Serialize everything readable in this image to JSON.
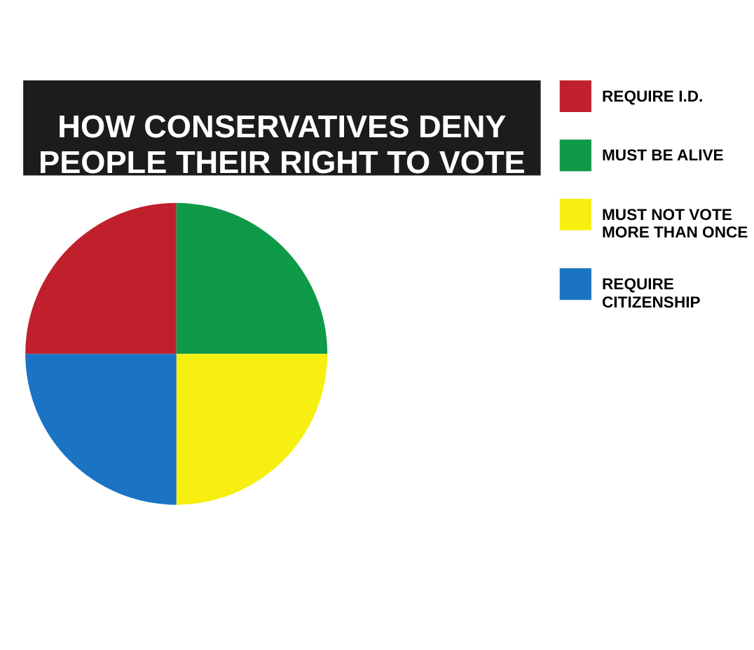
{
  "chart_data": {
    "type": "pie",
    "title": "HOW CONSERVATIVES DENY\nPEOPLE THEIR RIGHT TO VOTE",
    "categories": [
      "REQUIRE I.D.",
      "MUST BE ALIVE",
      "MUST NOT VOTE\nMORE THAN ONCE",
      "REQUIRE\nCITIZENSHIP"
    ],
    "values": [
      25,
      25,
      25,
      25
    ],
    "colors": [
      "#c0202c",
      "#0e9a48",
      "#f7ef10",
      "#1b73c4"
    ],
    "legend": "right"
  }
}
